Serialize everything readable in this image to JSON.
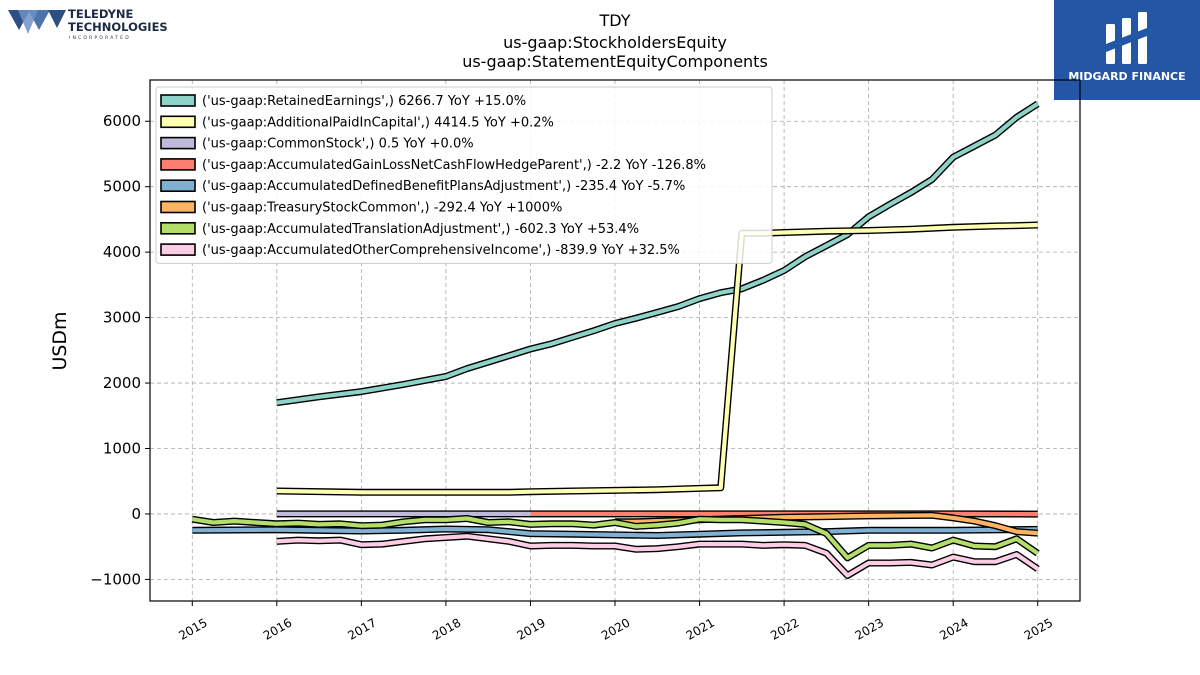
{
  "header": {
    "title_lines": [
      "TDY",
      "us-gaap:StockholdersEquity",
      "us-gaap:StatementEquityComponents"
    ]
  },
  "logo_left": {
    "line1": "TELEDYNE",
    "line2": "TECHNOLOGIES",
    "line3": "INCORPORATED"
  },
  "logo_right": {
    "text": "MIDGARD FINANCE"
  },
  "colors": {
    "RetainedEarnings": "#8dd3c7",
    "AdditionalPaidInCapital": "#ffffb3",
    "CommonStock": "#bebada",
    "AccumulatedGainLossNetCashFlowHedgeParent": "#fb8072",
    "AccumulatedDefinedBenefitPlansAdjustment": "#80b1d3",
    "TreasuryStockCommon": "#fdb462",
    "AccumulatedTranslationAdjustment": "#b3de69",
    "AccumulatedOtherComprehensiveIncome": "#fccde5"
  },
  "chart_data": {
    "type": "line",
    "ylabel": "USDm",
    "xlabel": "",
    "ylim": [
      -1330,
      6630
    ],
    "xlim": [
      2014.5,
      2025.5
    ],
    "yticks": [
      -1000,
      0,
      1000,
      2000,
      3000,
      4000,
      5000,
      6000
    ],
    "ytick_labels": [
      "−1000",
      "0",
      "1000",
      "2000",
      "3000",
      "4000",
      "5000",
      "6000"
    ],
    "xticks": [
      2015,
      2016,
      2017,
      2018,
      2019,
      2020,
      2021,
      2022,
      2023,
      2024,
      2025
    ],
    "xtick_labels": [
      "2015",
      "2016",
      "2017",
      "2018",
      "2019",
      "2020",
      "2021",
      "2022",
      "2023",
      "2024",
      "2025"
    ],
    "grid": true,
    "legend_position": "upper-left",
    "series": [
      {
        "name": "('us-gaap:RetainedEarnings',) 6266.7 YoY +15.0%",
        "color": "#8dd3c7",
        "x": [
          2016.0,
          2016.5,
          2017.0,
          2017.5,
          2018.0,
          2018.25,
          2018.5,
          2018.75,
          2019.0,
          2019.25,
          2019.5,
          2019.75,
          2020.0,
          2020.25,
          2020.5,
          2020.75,
          2021.0,
          2021.25,
          2021.5,
          2021.75,
          2022.0,
          2022.25,
          2022.5,
          2022.75,
          2023.0,
          2023.25,
          2023.5,
          2023.75,
          2024.0,
          2024.25,
          2024.5,
          2024.75,
          2025.0
        ],
        "y": [
          1700,
          1790,
          1870,
          1980,
          2100,
          2220,
          2320,
          2420,
          2520,
          2600,
          2700,
          2800,
          2910,
          2990,
          3080,
          3170,
          3290,
          3380,
          3440,
          3570,
          3720,
          3930,
          4100,
          4270,
          4540,
          4730,
          4910,
          5110,
          5450,
          5620,
          5790,
          6060,
          6266.7
        ]
      },
      {
        "name": "('us-gaap:AdditionalPaidInCapital',) 4414.5 YoY +0.2%",
        "color": "#ffffb3",
        "x": [
          2016.0,
          2017.0,
          2018.0,
          2018.75,
          2019.0,
          2019.5,
          2020.0,
          2020.5,
          2021.0,
          2021.25,
          2021.5,
          2021.75,
          2022.0,
          2022.5,
          2023.0,
          2023.5,
          2024.0,
          2024.5,
          2024.75,
          2025.0
        ],
        "y": [
          350,
          330,
          330,
          330,
          340,
          350,
          360,
          370,
          390,
          400,
          4290,
          4290,
          4300,
          4320,
          4330,
          4350,
          4380,
          4400,
          4406,
          4414.5
        ]
      },
      {
        "name": "('us-gaap:CommonStock',) 0.5 YoY +0.0%",
        "color": "#bebada",
        "x": [
          2016.0,
          2017.0,
          2018.0,
          2019.0
        ],
        "y": [
          0.5,
          0.5,
          0.5,
          0.5
        ]
      },
      {
        "name": "('us-gaap:AccumulatedGainLossNetCashFlowHedgeParent',) -2.2 YoY -126.8%",
        "color": "#fb8072",
        "x": [
          2019.0,
          2020.0,
          2021.0,
          2022.0,
          2023.0,
          2024.0,
          2025.0
        ],
        "y": [
          0,
          0,
          0,
          0,
          0,
          0,
          -2.2
        ]
      },
      {
        "name": "('us-gaap:AccumulatedDefinedBenefitPlansAdjustment',) -235.4 YoY -5.7%",
        "color": "#80b1d3",
        "x": [
          2015.0,
          2016.0,
          2017.0,
          2017.5,
          2018.0,
          2018.5,
          2019.0,
          2019.5,
          2020.0,
          2020.5,
          2021.0,
          2021.5,
          2022.0,
          2022.5,
          2023.0,
          2024.0,
          2025.0
        ],
        "y": [
          -250,
          -240,
          -260,
          -250,
          -230,
          -240,
          -300,
          -310,
          -320,
          -330,
          -310,
          -290,
          -280,
          -270,
          -250,
          -250,
          -235.4
        ]
      },
      {
        "name": "('us-gaap:TreasuryStockCommon',) -292.4 YoY +1000%",
        "color": "#fdb462",
        "x": [
          2020.0,
          2020.25,
          2020.5,
          2021.0,
          2021.5,
          2022.0,
          2022.5,
          2023.0,
          2023.75,
          2024.0,
          2024.25,
          2024.5,
          2024.75,
          2025.0
        ],
        "y": [
          -120,
          -120,
          -110,
          -90,
          -70,
          -50,
          -40,
          -30,
          -20,
          -60,
          -110,
          -180,
          -270,
          -292.4
        ]
      },
      {
        "name": "('us-gaap:AccumulatedTranslationAdjustment',) -602.3 YoY +53.4%",
        "color": "#b3de69",
        "x": [
          2015.0,
          2015.25,
          2015.5,
          2015.75,
          2016.0,
          2016.25,
          2016.5,
          2016.75,
          2017.0,
          2017.25,
          2017.5,
          2017.75,
          2018.0,
          2018.25,
          2018.5,
          2018.75,
          2019.0,
          2019.25,
          2019.5,
          2019.75,
          2020.0,
          2020.25,
          2020.5,
          2020.75,
          2021.0,
          2021.25,
          2021.5,
          2021.75,
          2022.0,
          2022.25,
          2022.5,
          2022.75,
          2023.0,
          2023.25,
          2023.5,
          2023.75,
          2024.0,
          2024.25,
          2024.5,
          2024.75,
          2025.0
        ],
        "y": [
          -80,
          -130,
          -110,
          -130,
          -150,
          -140,
          -160,
          -150,
          -180,
          -170,
          -120,
          -90,
          -90,
          -70,
          -130,
          -120,
          -160,
          -150,
          -150,
          -170,
          -130,
          -190,
          -170,
          -140,
          -80,
          -90,
          -90,
          -110,
          -130,
          -160,
          -300,
          -670,
          -480,
          -480,
          -460,
          -520,
          -400,
          -490,
          -500,
          -380,
          -602.3
        ]
      },
      {
        "name": "('us-gaap:AccumulatedOtherComprehensiveIncome',) -839.9 YoY +32.5%",
        "color": "#fccde5",
        "x": [
          2016.0,
          2016.25,
          2016.5,
          2016.75,
          2017.0,
          2017.25,
          2017.5,
          2017.75,
          2018.0,
          2018.25,
          2018.5,
          2018.75,
          2019.0,
          2019.25,
          2019.5,
          2019.75,
          2020.0,
          2020.25,
          2020.5,
          2020.75,
          2021.0,
          2021.25,
          2021.5,
          2021.75,
          2022.0,
          2022.25,
          2022.5,
          2022.75,
          2023.0,
          2023.25,
          2023.5,
          2023.75,
          2024.0,
          2024.25,
          2024.5,
          2024.75,
          2025.0
        ],
        "y": [
          -420,
          -400,
          -410,
          -400,
          -470,
          -460,
          -420,
          -380,
          -360,
          -340,
          -380,
          -420,
          -490,
          -480,
          -480,
          -490,
          -490,
          -540,
          -530,
          -500,
          -460,
          -460,
          -460,
          -480,
          -470,
          -480,
          -600,
          -940,
          -750,
          -750,
          -740,
          -780,
          -660,
          -730,
          -730,
          -620,
          -839.9
        ]
      }
    ]
  }
}
